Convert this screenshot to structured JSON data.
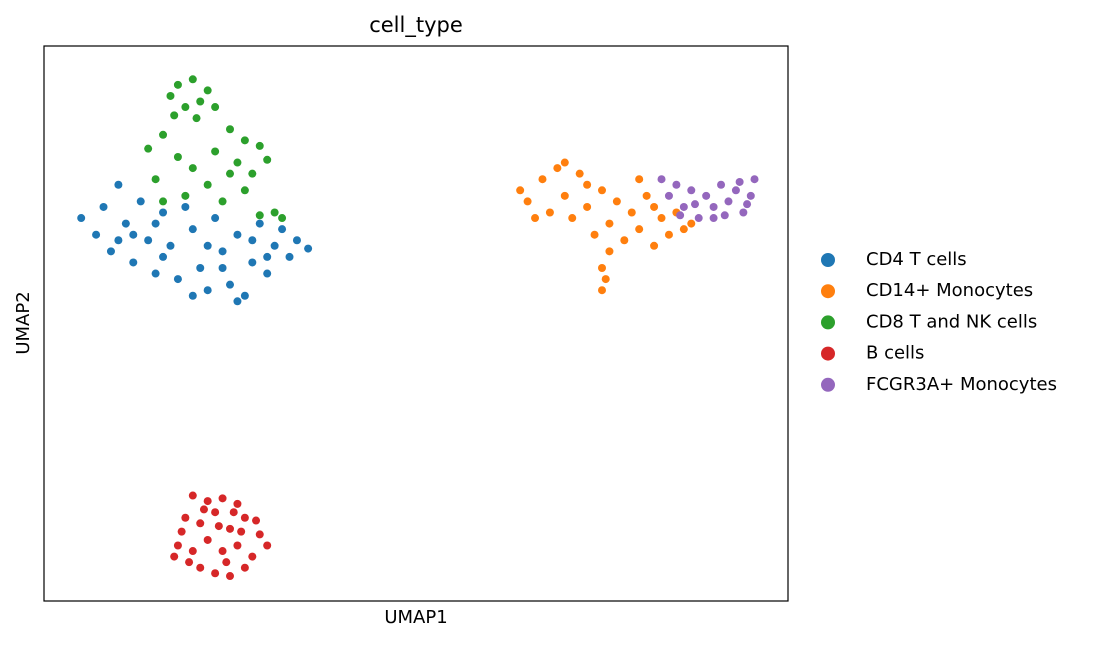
{
  "chart_data": {
    "type": "scatter",
    "title": "cell_type",
    "x_label": "UMAP1",
    "y_label": "UMAP2",
    "xlim": [
      0,
      10
    ],
    "ylim": [
      0,
      10
    ],
    "legend": "right-outside",
    "series": [
      {
        "name": "CD4 T cells",
        "color": "#1f77b4",
        "x": [
          0.5,
          0.7,
          0.8,
          0.9,
          1.0,
          1.1,
          1.2,
          1.3,
          1.4,
          1.5,
          1.6,
          1.7,
          1.8,
          1.9,
          2.0,
          2.1,
          2.2,
          2.3,
          2.4,
          2.5,
          2.6,
          2.7,
          2.8,
          2.9,
          3.0,
          3.1,
          3.2,
          3.3,
          3.4,
          3.55,
          1.2,
          1.6,
          2.0,
          2.4,
          2.8,
          1.0,
          1.5,
          2.2,
          2.6,
          3.0
        ],
        "y": [
          6.9,
          6.6,
          7.1,
          6.3,
          7.5,
          6.8,
          6.1,
          7.2,
          6.5,
          5.9,
          7.0,
          6.4,
          5.8,
          7.1,
          6.7,
          6.0,
          5.6,
          6.9,
          6.3,
          5.7,
          6.6,
          5.5,
          6.1,
          6.8,
          5.9,
          6.4,
          6.7,
          6.2,
          6.5,
          6.35,
          6.6,
          6.2,
          5.5,
          6.0,
          6.5,
          6.5,
          6.8,
          6.4,
          5.4,
          6.2
        ]
      },
      {
        "name": "CD14+ Monocytes",
        "color": "#ff7f0e",
        "x": [
          6.4,
          6.5,
          6.7,
          6.8,
          6.9,
          7.0,
          7.1,
          7.2,
          7.3,
          7.4,
          7.5,
          7.6,
          7.7,
          7.8,
          7.9,
          8.0,
          8.1,
          8.2,
          8.3,
          8.4,
          8.5,
          8.6,
          8.7,
          7.6,
          7.5,
          7.55,
          7.5,
          7.0,
          7.3,
          8.0,
          8.2,
          6.6
        ],
        "y": [
          7.4,
          7.2,
          7.6,
          7.0,
          7.8,
          7.3,
          6.9,
          7.7,
          7.1,
          6.6,
          7.4,
          6.8,
          7.2,
          6.5,
          7.0,
          6.7,
          7.3,
          6.4,
          6.9,
          6.6,
          7.0,
          6.7,
          6.8,
          6.3,
          6.0,
          5.8,
          5.6,
          7.9,
          7.5,
          7.6,
          7.1,
          6.9
        ]
      },
      {
        "name": "CD8 T and NK cells",
        "color": "#2ca02c",
        "x": [
          1.7,
          1.8,
          1.9,
          2.0,
          2.1,
          2.2,
          1.75,
          2.05,
          2.3,
          1.6,
          2.5,
          2.7,
          2.9,
          2.6,
          2.8,
          3.0,
          1.8,
          2.0,
          2.2,
          1.5,
          1.6,
          2.4,
          2.7,
          3.1,
          3.2,
          2.9,
          1.9,
          2.3,
          1.4,
          2.5
        ],
        "y": [
          9.1,
          9.3,
          8.9,
          9.4,
          9.0,
          9.2,
          8.75,
          8.7,
          8.9,
          8.4,
          8.5,
          8.3,
          8.2,
          7.9,
          7.7,
          7.95,
          8.0,
          7.8,
          7.5,
          7.6,
          7.2,
          7.2,
          7.4,
          7.0,
          6.9,
          6.95,
          7.3,
          8.1,
          8.15,
          7.7
        ]
      },
      {
        "name": "B cells",
        "color": "#d62728",
        "x": [
          2.0,
          2.2,
          2.4,
          2.6,
          1.9,
          2.1,
          2.3,
          2.5,
          2.7,
          2.9,
          3.0,
          1.8,
          1.75,
          2.0,
          2.2,
          2.4,
          2.6,
          2.8,
          2.1,
          2.3,
          2.5,
          2.7,
          1.95,
          2.35,
          2.55,
          2.15,
          2.85,
          2.45,
          1.85,
          2.65
        ],
        "y": [
          1.9,
          1.8,
          1.85,
          1.75,
          1.5,
          1.4,
          1.6,
          1.3,
          1.5,
          1.2,
          1.0,
          1.0,
          0.8,
          0.9,
          1.1,
          0.9,
          1.0,
          0.8,
          0.6,
          0.5,
          0.45,
          0.6,
          0.7,
          1.35,
          1.6,
          1.65,
          1.45,
          0.7,
          1.25,
          1.25
        ]
      },
      {
        "name": "FCGR3A+ Monocytes",
        "color": "#9467bd",
        "x": [
          8.3,
          8.4,
          8.5,
          8.6,
          8.7,
          8.8,
          8.9,
          9.0,
          9.1,
          9.2,
          9.3,
          9.4,
          9.5,
          9.55,
          9.0,
          8.75,
          9.15,
          9.35,
          8.55,
          9.45
        ],
        "y": [
          7.6,
          7.3,
          7.5,
          7.1,
          7.4,
          6.9,
          7.3,
          7.1,
          7.5,
          7.2,
          7.4,
          7.0,
          7.3,
          7.6,
          6.9,
          7.15,
          6.95,
          7.55,
          6.95,
          7.15
        ]
      }
    ]
  }
}
